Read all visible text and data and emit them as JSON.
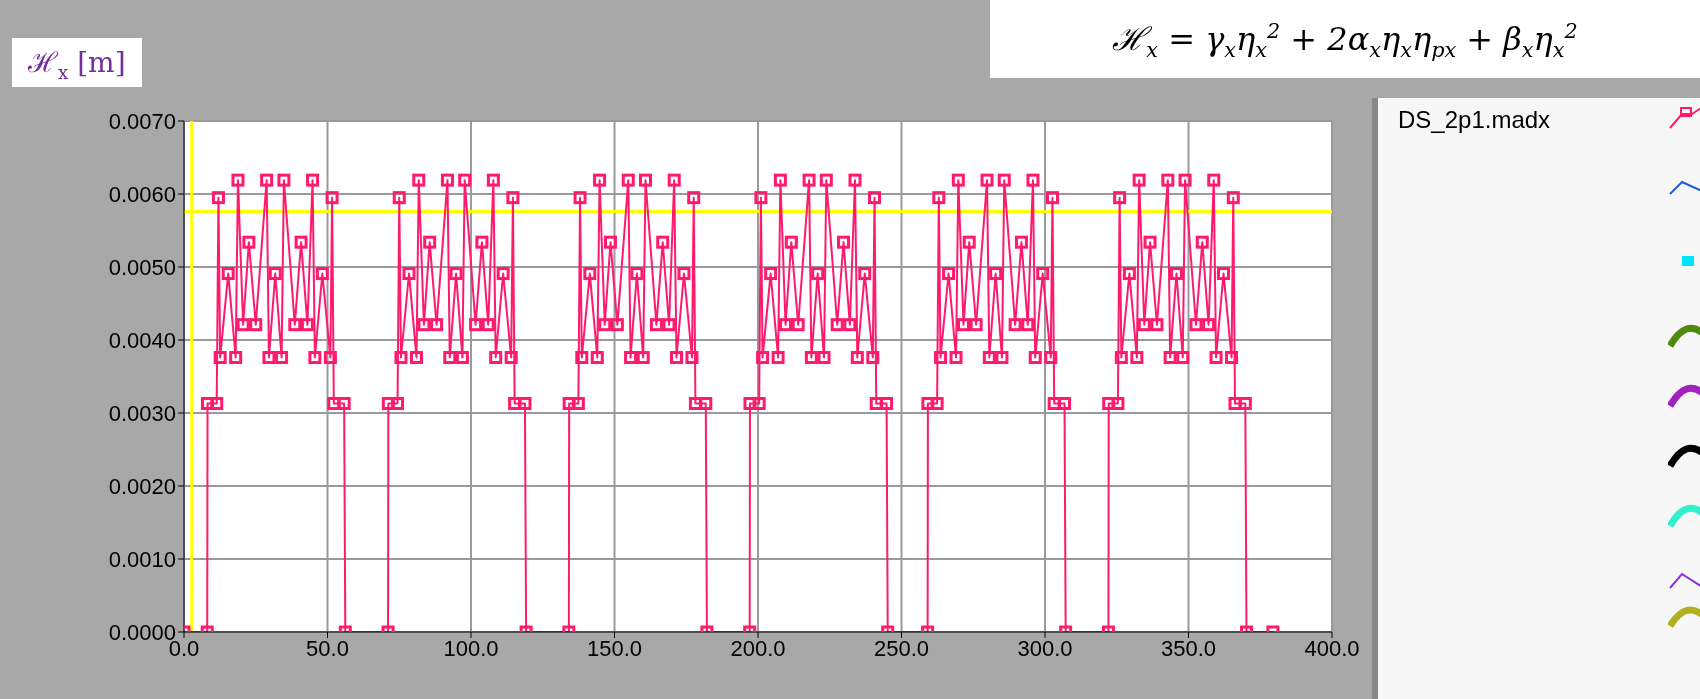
{
  "chart_data": {
    "type": "line",
    "title": "ℋ$_{x}$ = γ$_{x}$η$_{x}$$^{2}$ + 2α$_{x}$η$_{x}$η$_{px}$ + β$_{x}$η$_{x}$$^{2}$",
    "ylabel": "ℋ$_{x}$ [m]",
    "x": [
      0,
      8.1,
      8.2,
      11.4,
      12,
      12.6,
      15.4,
      18,
      18.8,
      20.6,
      22.6,
      25,
      28.8,
      29.6,
      31.8,
      34,
      34.8,
      38.6,
      40.8,
      43,
      44.8,
      45.6,
      48.2,
      51,
      51.6,
      52.2,
      55.8,
      56.2,
      71.1,
      71.2,
      74.4,
      75,
      75.6,
      78.4,
      81,
      81.8,
      83.6,
      85.6,
      88,
      91.8,
      92.6,
      94.8,
      97,
      97.8,
      101.6,
      103.8,
      106,
      107.8,
      108.6,
      111.2,
      114,
      114.6,
      115.2,
      118.8,
      119.2,
      134.1,
      134.2,
      137.4,
      138,
      138.6,
      141.4,
      144,
      144.8,
      146.6,
      148.6,
      151,
      154.8,
      155.6,
      157.8,
      160,
      160.8,
      164.6,
      166.8,
      169,
      170.8,
      171.6,
      174.2,
      177,
      177.6,
      178.2,
      181.8,
      182.2,
      197.1,
      197.2,
      200.4,
      201,
      201.6,
      204.4,
      207,
      207.8,
      209.6,
      211.6,
      214,
      217.8,
      218.6,
      220.8,
      223,
      223.8,
      227.6,
      229.8,
      232,
      233.8,
      234.6,
      237.2,
      240,
      240.6,
      241.2,
      244.8,
      245.2,
      259.1,
      259.2,
      262.4,
      263,
      263.6,
      266.4,
      269,
      269.8,
      271.6,
      273.6,
      276,
      279.8,
      280.6,
      282.8,
      285,
      285.8,
      289.6,
      291.8,
      294,
      295.8,
      296.6,
      299.2,
      302,
      302.6,
      303.2,
      306.8,
      307.2,
      322.1,
      322.2,
      325.4,
      326,
      326.6,
      329.4,
      332,
      332.8,
      334.6,
      336.6,
      339,
      342.8,
      343.6,
      345.8,
      348,
      348.8,
      352.6,
      354.8,
      357,
      358.8,
      359.6,
      362.2,
      365,
      365.6,
      366.2,
      369.8,
      370.2,
      379.4
    ],
    "series": [
      {
        "name": "DS_2p1.madx",
        "color": "#ff1a6e",
        "values": [
          0,
          0,
          0.00313,
          0.00313,
          0.00595,
          0.00376,
          0.00491,
          0.00376,
          0.00619,
          0.00421,
          0.00534,
          0.00421,
          0.00619,
          0.00376,
          0.00491,
          0.00376,
          0.00619,
          0.00421,
          0.00534,
          0.00421,
          0.00619,
          0.00376,
          0.00491,
          0.00376,
          0.00595,
          0.00313,
          0.00313,
          0,
          0,
          0.00313,
          0.00313,
          0.00595,
          0.00376,
          0.00491,
          0.00376,
          0.00619,
          0.00421,
          0.00534,
          0.00421,
          0.00619,
          0.00376,
          0.00491,
          0.00376,
          0.00619,
          0.00421,
          0.00534,
          0.00421,
          0.00619,
          0.00376,
          0.00491,
          0.00376,
          0.00595,
          0.00313,
          0.00313,
          0,
          0,
          0.00313,
          0.00313,
          0.00595,
          0.00376,
          0.00491,
          0.00376,
          0.00619,
          0.00421,
          0.00534,
          0.00421,
          0.00619,
          0.00376,
          0.00491,
          0.00376,
          0.00619,
          0.00421,
          0.00534,
          0.00421,
          0.00619,
          0.00376,
          0.00491,
          0.00376,
          0.00595,
          0.00313,
          0.00313,
          0,
          0,
          0.00313,
          0.00313,
          0.00595,
          0.00376,
          0.00491,
          0.00376,
          0.00619,
          0.00421,
          0.00534,
          0.00421,
          0.00619,
          0.00376,
          0.00491,
          0.00376,
          0.00619,
          0.00421,
          0.00534,
          0.00421,
          0.00619,
          0.00376,
          0.00491,
          0.00376,
          0.00595,
          0.00313,
          0.00313,
          0,
          0,
          0.00313,
          0.00313,
          0.00595,
          0.00376,
          0.00491,
          0.00376,
          0.00619,
          0.00421,
          0.00534,
          0.00421,
          0.00619,
          0.00376,
          0.00491,
          0.00376,
          0.00619,
          0.00421,
          0.00534,
          0.00421,
          0.00619,
          0.00376,
          0.00491,
          0.00376,
          0.00595,
          0.00313,
          0.00313,
          0,
          0,
          0.00313,
          0.00313,
          0.00595,
          0.00376,
          0.00491,
          0.00376,
          0.00619,
          0.00421,
          0.00534,
          0.00421,
          0.00619,
          0.00376,
          0.00491,
          0.00376,
          0.00619,
          0.00421,
          0.00534,
          0.00421,
          0.00619,
          0.00376,
          0.00491,
          0.00376,
          0.00595,
          0.00313,
          0.00313,
          0,
          0
        ]
      }
    ],
    "xlim": [
      0,
      400
    ],
    "xticks": [
      {
        "value": 0,
        "label": "0.0"
      },
      {
        "value": 50,
        "label": "50.0"
      },
      {
        "value": 100,
        "label": "100.0"
      },
      {
        "value": 150,
        "label": "150.0"
      },
      {
        "value": 200,
        "label": "200.0"
      },
      {
        "value": 250,
        "label": "250.0"
      },
      {
        "value": 300,
        "label": "300.0"
      },
      {
        "value": 350,
        "label": "350.0"
      },
      {
        "value": 400,
        "label": "400.0"
      }
    ],
    "ylim": [
      0,
      0.007
    ],
    "yticks": [
      {
        "value": 0,
        "label": "0.0000"
      },
      {
        "value": 0.001,
        "label": "0.0010"
      },
      {
        "value": 0.002,
        "label": "0.0020"
      },
      {
        "value": 0.003,
        "label": "0.0030"
      },
      {
        "value": 0.004,
        "label": "0.0040"
      },
      {
        "value": 0.005,
        "label": "0.0050"
      },
      {
        "value": 0.006,
        "label": "0.0060"
      },
      {
        "value": 0.007,
        "label": "0.0070"
      }
    ],
    "ref_lines": [
      {
        "axis": "y",
        "value": 0.00576,
        "color": "#ffff00"
      },
      {
        "axis": "x",
        "value": 2.7,
        "color": "#ffff00"
      }
    ],
    "grid": true,
    "legend": "right",
    "marker": "square",
    "line_style": "solid"
  }
}
